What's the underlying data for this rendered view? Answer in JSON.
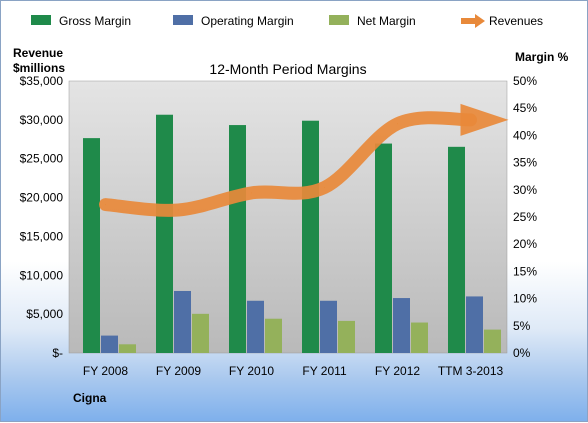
{
  "chart_data": {
    "type": "bar",
    "title": "12-Month Period Margins",
    "company": "Cigna",
    "left_axis_label": [
      "Revenue",
      "$millions"
    ],
    "right_axis_label": "Margin %",
    "categories": [
      "FY 2008",
      "FY 2009",
      "FY 2010",
      "FY 2011",
      "FY 2012",
      "TTM 3-2013"
    ],
    "left_ticks": [
      "$-",
      "$5,000",
      "$10,000",
      "$15,000",
      "$20,000",
      "$25,000",
      "$30,000",
      "$35,000"
    ],
    "right_ticks": [
      "0%",
      "5%",
      "10%",
      "15%",
      "20%",
      "25%",
      "30%",
      "35%",
      "40%",
      "45%",
      "50%"
    ],
    "left_range": [
      0,
      35000
    ],
    "right_range": [
      0,
      50
    ],
    "series": [
      {
        "name": "Gross Margin",
        "axis": "right",
        "color": "#1f8a4a",
        "values": [
          39.5,
          43.8,
          41.9,
          42.7,
          38.5,
          37.9
        ]
      },
      {
        "name": "Operating Margin",
        "axis": "right",
        "color": "#4f6fa6",
        "values": [
          3.2,
          11.4,
          9.6,
          9.6,
          10.1,
          10.4
        ]
      },
      {
        "name": "Net Margin",
        "axis": "right",
        "color": "#94b15b",
        "values": [
          1.6,
          7.2,
          6.3,
          5.9,
          5.6,
          4.3
        ]
      },
      {
        "name": "Revenues",
        "axis": "left",
        "type": "line",
        "color": "#e8893a",
        "values": [
          19100,
          18400,
          20600,
          21300,
          29500,
          30000
        ]
      }
    ],
    "legend_position": "top",
    "grid": false
  }
}
